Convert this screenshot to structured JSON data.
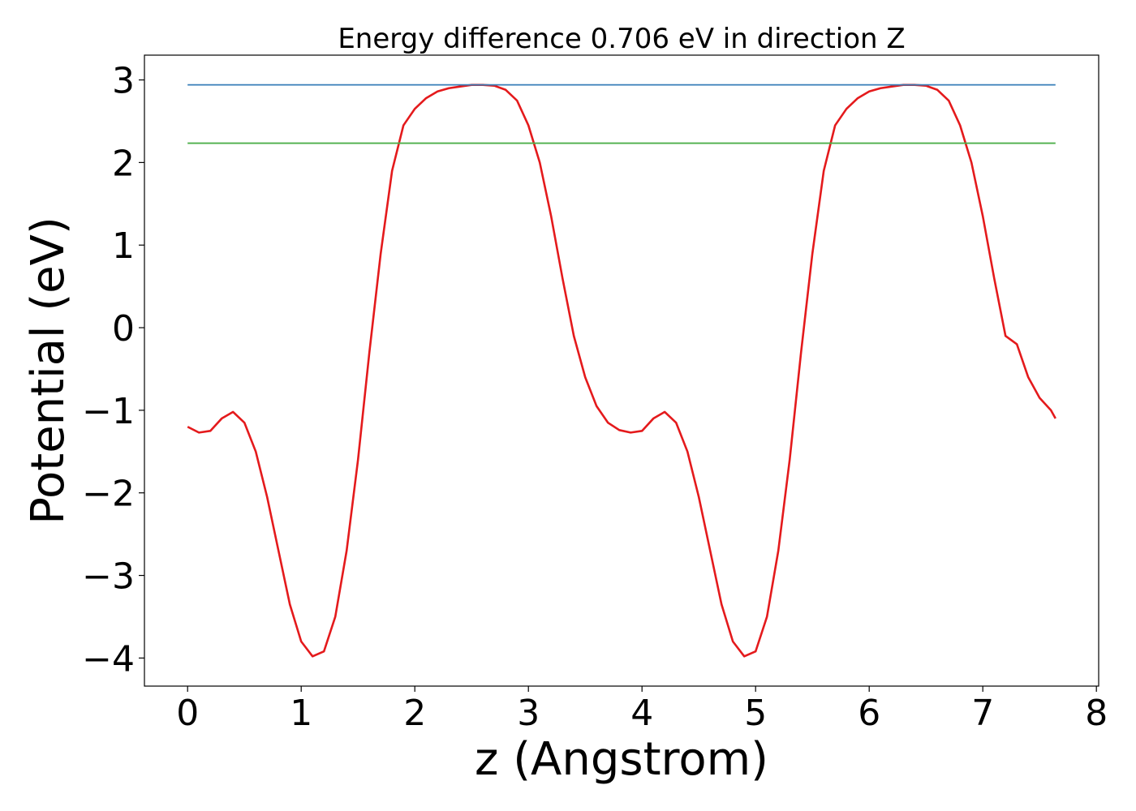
{
  "chart_data": {
    "type": "line",
    "title": "Energy difference 0.706 eV in direction Z",
    "xlabel": "z (Angstrom)",
    "ylabel": "Potential (eV)",
    "series": [
      {
        "color": "#e41a1c",
        "x": [
          0,
          0.1,
          0.2,
          0.3,
          0.4,
          0.5,
          0.6,
          0.7,
          0.8,
          0.9,
          1.0,
          1.1,
          1.2,
          1.3,
          1.4,
          1.5,
          1.6,
          1.7,
          1.8,
          1.9,
          2.0,
          2.1,
          2.2,
          2.3,
          2.4,
          2.5,
          2.6,
          2.7,
          2.8,
          2.9,
          3.0,
          3.1,
          3.2,
          3.3,
          3.4,
          3.5,
          3.6,
          3.7,
          3.8,
          3.9,
          4.0,
          4.1,
          4.2,
          4.3,
          4.4,
          4.5,
          4.6,
          4.7,
          4.8,
          4.9,
          5.0,
          5.1,
          5.2,
          5.3,
          5.4,
          5.5,
          5.6,
          5.7,
          5.8,
          5.9,
          6.0,
          6.1,
          6.2,
          6.3,
          6.4,
          6.5,
          6.6,
          6.7,
          6.8,
          6.9,
          7.0,
          7.1,
          7.2,
          7.3,
          7.4,
          7.5,
          7.6,
          7.64
        ],
        "values": [
          -1.2,
          -1.27,
          -1.25,
          -1.1,
          -1.02,
          -1.15,
          -1.5,
          -2.05,
          -2.7,
          -3.35,
          -3.8,
          -3.98,
          -3.92,
          -3.5,
          -2.7,
          -1.6,
          -0.3,
          0.9,
          1.9,
          2.45,
          2.65,
          2.78,
          2.86,
          2.9,
          2.92,
          2.94,
          2.94,
          2.93,
          2.88,
          2.75,
          2.45,
          2.0,
          1.35,
          0.6,
          -0.1,
          -0.6,
          -0.95,
          -1.15,
          -1.24,
          -1.27,
          -1.25,
          -1.1,
          -1.02,
          -1.15,
          -1.5,
          -2.05,
          -2.7,
          -3.35,
          -3.8,
          -3.98,
          -3.92,
          -3.5,
          -2.7,
          -1.6,
          -0.3,
          0.9,
          1.9,
          2.45,
          2.65,
          2.78,
          2.86,
          2.9,
          2.92,
          2.94,
          2.94,
          2.93,
          2.88,
          2.75,
          2.45,
          2.0,
          1.35,
          0.6,
          -0.1,
          -0.2,
          -0.6,
          -0.85,
          -1.0,
          -1.1
        ]
      },
      {
        "color": "#377eb8",
        "x": [
          0,
          7.64
        ],
        "values": [
          2.94,
          2.94
        ]
      },
      {
        "color": "#4daf4a",
        "x": [
          0,
          7.64
        ],
        "values": [
          2.234,
          2.234
        ]
      }
    ],
    "xlim": [
      -0.38,
      8.02
    ],
    "ylim": [
      -4.34,
      3.3
    ],
    "xticks": [
      0,
      1,
      2,
      3,
      4,
      5,
      6,
      7,
      8
    ],
    "yticks": [
      {
        "value": -4,
        "label": "−4"
      },
      {
        "value": -3,
        "label": "−3"
      },
      {
        "value": -2,
        "label": "−2"
      },
      {
        "value": -1,
        "label": "−1"
      },
      0,
      1,
      2,
      3
    ]
  }
}
